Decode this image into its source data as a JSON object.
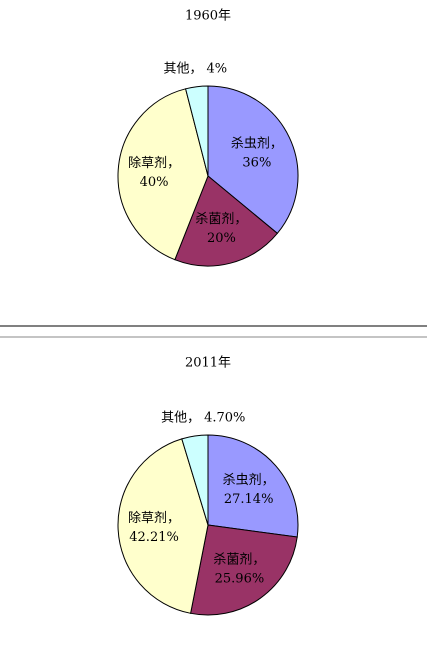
{
  "chart_data": [
    {
      "type": "pie",
      "title": "1960年",
      "categories": [
        "杀虫剂，",
        "杀菌剂，",
        "除草剂，",
        "其他，"
      ],
      "values": [
        36,
        20,
        40,
        4
      ],
      "value_labels": [
        "36%",
        "20%",
        "40%",
        "4%"
      ],
      "colors": [
        "#9999ff",
        "#993366",
        "#ffffcc",
        "#ccffff"
      ]
    },
    {
      "type": "pie",
      "title": "2011年",
      "categories": [
        "杀虫剂，",
        "杀菌剂，",
        "除草剂，",
        "其他，"
      ],
      "values": [
        27.14,
        25.96,
        42.21,
        4.7
      ],
      "value_labels": [
        "27.14%",
        "25.96%",
        "42.21%",
        "4.70%"
      ],
      "colors": [
        "#9999ff",
        "#993366",
        "#ffffcc",
        "#ccffff"
      ]
    }
  ]
}
